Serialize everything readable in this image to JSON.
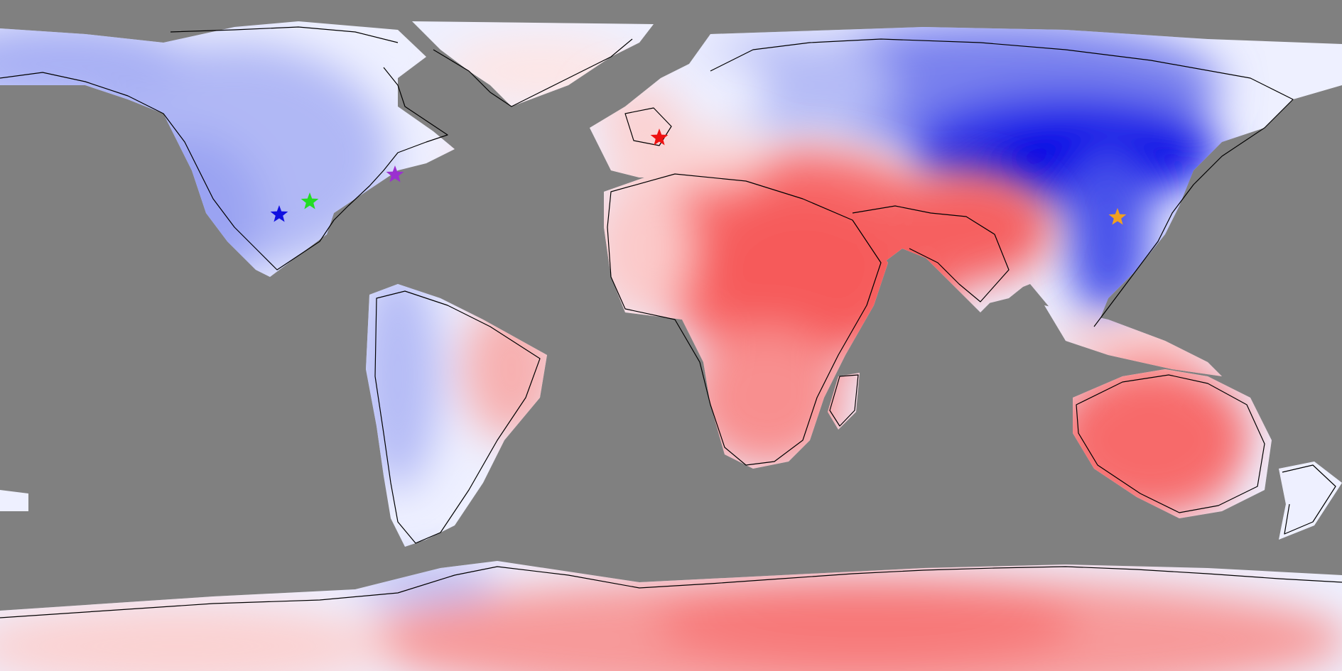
{
  "map": {
    "projection": "equirectangular",
    "ocean_color": "#808080",
    "coastline_color": "#000000",
    "color_scale": {
      "negative_strong": "#0000e6",
      "negative_mid": "#7a80f0",
      "negative_light": "#c7cbf7",
      "neutral": "#ffffff",
      "positive_light": "#fbd3d3",
      "positive_mid": "#f99090",
      "positive_strong": "#f75a5a"
    },
    "markers": [
      {
        "name": "marker-blue-star",
        "color": "#1010e0",
        "icon": "star-icon"
      },
      {
        "name": "marker-green-star",
        "color": "#22dd22",
        "icon": "star-icon"
      },
      {
        "name": "marker-purple-star",
        "color": "#9b30d0",
        "icon": "star-icon"
      },
      {
        "name": "marker-red-star",
        "color": "#ee1111",
        "icon": "star-icon"
      },
      {
        "name": "marker-orange-star",
        "color": "#f0a020",
        "icon": "star-icon"
      }
    ]
  }
}
